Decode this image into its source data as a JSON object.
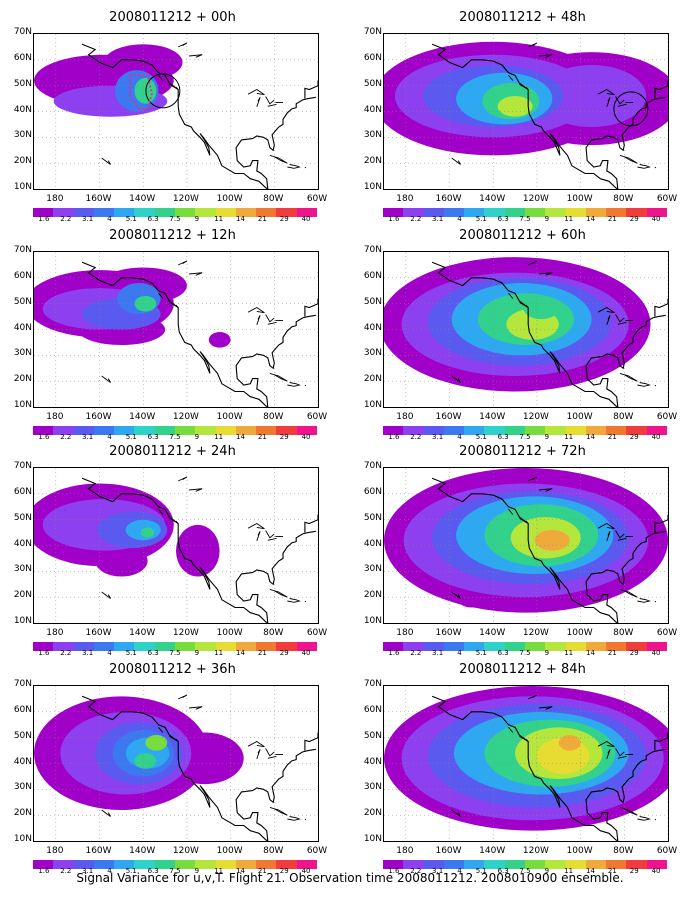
{
  "colorbar": {
    "labels": [
      "1.6",
      "2.2",
      "3.1",
      "4",
      "5.1",
      "6.3",
      "7.5",
      "9",
      "11",
      "14",
      "21",
      "29",
      "40"
    ],
    "colors": [
      "#a000c8",
      "#8c40f0",
      "#5a5af0",
      "#3c78f0",
      "#2ea8f0",
      "#2ed2c8",
      "#32d28c",
      "#78dc3c",
      "#b4e63c",
      "#e6dc32",
      "#f0aa3c",
      "#f07832",
      "#f03c3c",
      "#f0148c"
    ]
  },
  "axes": {
    "lat_labels": [
      "70N",
      "60N",
      "50N",
      "40N",
      "30N",
      "20N",
      "10N"
    ],
    "lon_labels": [
      "180",
      "160W",
      "140W",
      "120W",
      "100W",
      "80W",
      "60W"
    ]
  },
  "panels": [
    {
      "title": "2008011212 + 00h",
      "level": 0,
      "circles": [
        [
          -131,
          48
        ]
      ],
      "rect": true
    },
    {
      "title": "2008011212 + 12h",
      "level": 1,
      "circles": [],
      "rect": false
    },
    {
      "title": "2008011212 + 24h",
      "level": 2,
      "circles": [],
      "rect": false
    },
    {
      "title": "2008011212 + 36h",
      "level": 3,
      "circles": [],
      "rect": false
    },
    {
      "title": "2008011212 + 48h",
      "level": 4,
      "circles": [
        [
          -77,
          41
        ]
      ],
      "rect": false
    },
    {
      "title": "2008011212 + 60h",
      "level": 5,
      "circles": [],
      "rect": false
    },
    {
      "title": "2008011212 + 72h",
      "level": 6,
      "circles": [],
      "rect": false
    },
    {
      "title": "2008011212 + 84h",
      "level": 7,
      "circles": [],
      "rect": false
    }
  ],
  "footer": "Signal Variance for u,v,T. Flight 21. Observation time 2008011212. 2008010900 ensemble."
}
